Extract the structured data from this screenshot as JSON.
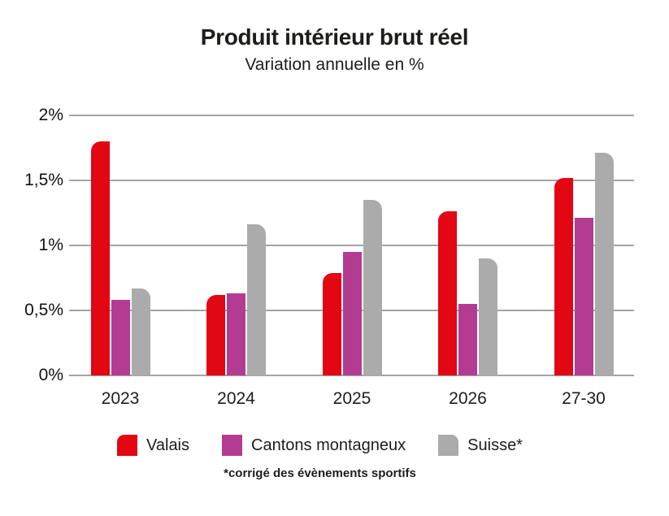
{
  "chart_data": {
    "type": "bar",
    "title": "Produit intérieur brut réel",
    "subtitle": "Variation annuelle en %",
    "footnote": "*corrigé des évènements sportifs",
    "categories": [
      "2023",
      "2024",
      "2025",
      "2026",
      "27-30"
    ],
    "series": [
      {
        "name": "Valais",
        "color": "#e30613",
        "values": [
          1.8,
          0.62,
          0.79,
          1.26,
          1.52
        ]
      },
      {
        "name": "Cantons montagneux",
        "color": "#b43b92",
        "values": [
          0.58,
          0.63,
          0.95,
          0.55,
          1.21
        ]
      },
      {
        "name": "Suisse*",
        "color": "#ababab",
        "values": [
          0.67,
          1.16,
          1.35,
          0.9,
          1.71
        ]
      }
    ],
    "ylim": [
      0,
      2
    ],
    "yticks": [
      {
        "value": 0,
        "label": "0%"
      },
      {
        "value": 0.5,
        "label": "0,5%"
      },
      {
        "value": 1,
        "label": "1%"
      },
      {
        "value": 1.5,
        "label": "1,5%"
      },
      {
        "value": 2,
        "label": "2%"
      }
    ],
    "grid": true,
    "legend_position": "bottom",
    "gridline_color": "#a4a4a3"
  }
}
